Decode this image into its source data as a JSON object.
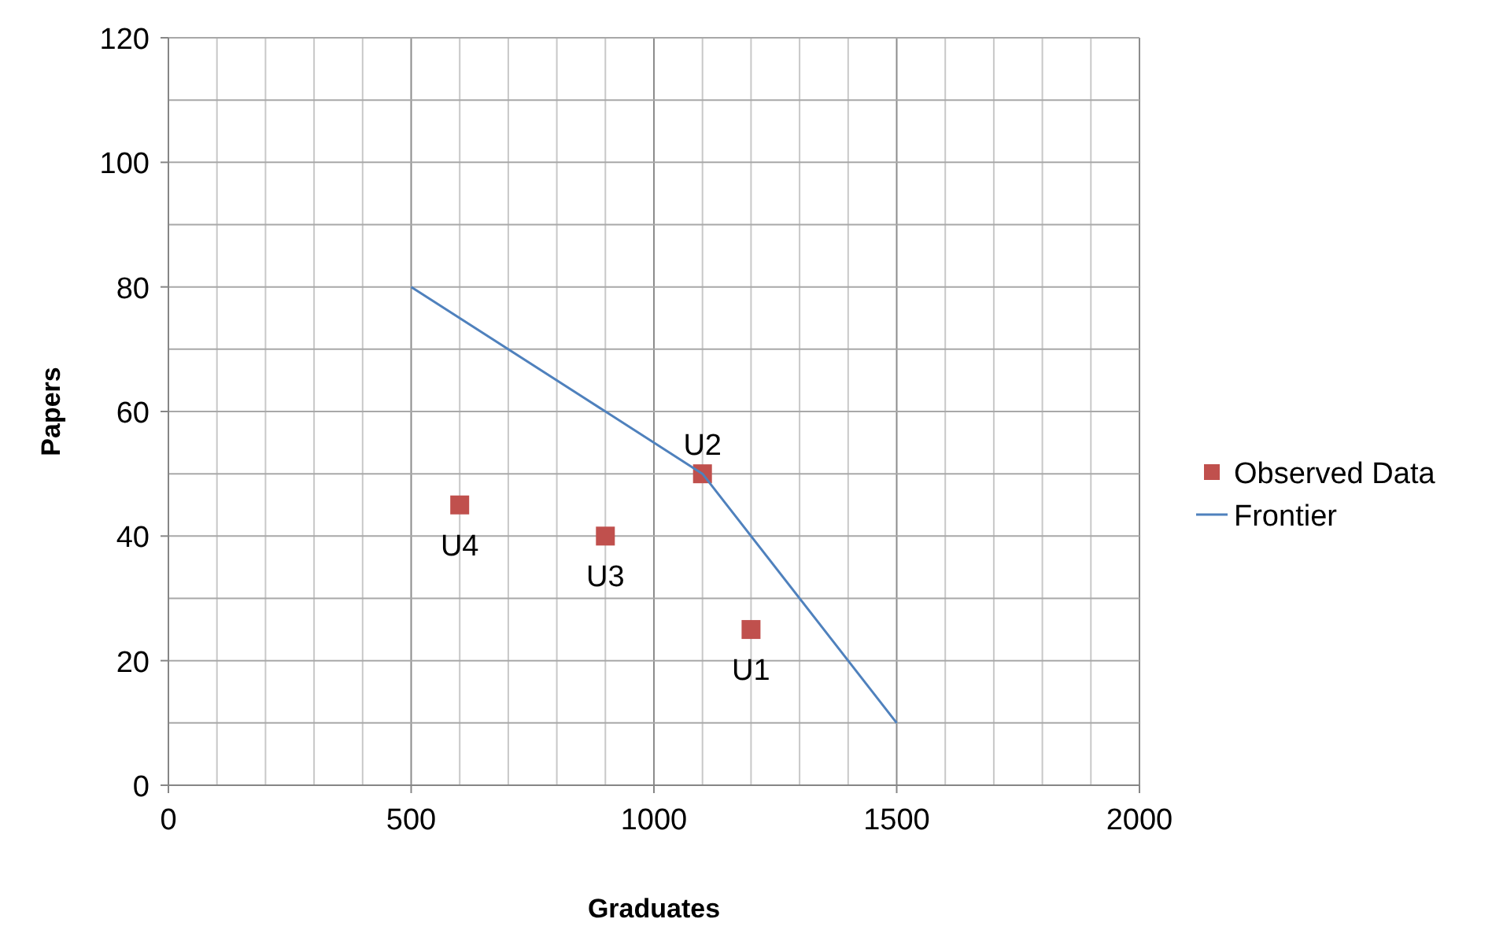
{
  "chart_data": {
    "type": "scatter",
    "xlabel": "Graduates",
    "ylabel": "Papers",
    "xlim": [
      0,
      2000
    ],
    "ylim": [
      0,
      120
    ],
    "xticks": [
      0,
      {
        "value": 100,
        "label": null
      },
      {
        "value": 200,
        "label": null
      },
      {
        "value": 300,
        "label": null
      },
      {
        "value": 400,
        "label": null
      },
      500,
      {
        "value": 600,
        "label": null
      },
      {
        "value": 700,
        "label": null
      },
      {
        "value": 800,
        "label": null
      },
      {
        "value": 900,
        "label": null
      },
      1000,
      {
        "value": 1100,
        "label": null
      },
      {
        "value": 1200,
        "label": null
      },
      {
        "value": 1300,
        "label": null
      },
      {
        "value": 1400,
        "label": null
      },
      1500,
      {
        "value": 1600,
        "label": null
      },
      {
        "value": 1700,
        "label": null
      },
      {
        "value": 1800,
        "label": null
      },
      {
        "value": 1900,
        "label": null
      },
      2000
    ],
    "yticks": [
      0,
      {
        "value": 10,
        "label": null
      },
      20,
      {
        "value": 30,
        "label": null
      },
      40,
      {
        "value": 50,
        "label": null
      },
      60,
      {
        "value": 70,
        "label": null
      },
      80,
      {
        "value": 90,
        "label": null
      },
      100,
      {
        "value": 110,
        "label": null
      },
      120
    ],
    "grid": true,
    "legend": "right",
    "series": [
      {
        "name": "Observed Data",
        "marker": "square",
        "color": "#c0504d",
        "x": [
          1200,
          1100,
          900,
          600
        ],
        "values": [
          25,
          50,
          40,
          45
        ]
      },
      {
        "name": "Frontier",
        "type": "line",
        "marker": "none",
        "color": "#4f81bd",
        "x": [
          500,
          1100,
          1500
        ],
        "values": [
          80,
          50,
          10
        ]
      }
    ],
    "annotations": [
      {
        "text": "U1",
        "x": 1200,
        "y": 25
      },
      {
        "text": "U2",
        "x": 1100,
        "y": 50
      },
      {
        "text": "U3",
        "x": 900,
        "y": 40
      },
      {
        "text": "U4",
        "x": 600,
        "y": 45
      }
    ]
  }
}
